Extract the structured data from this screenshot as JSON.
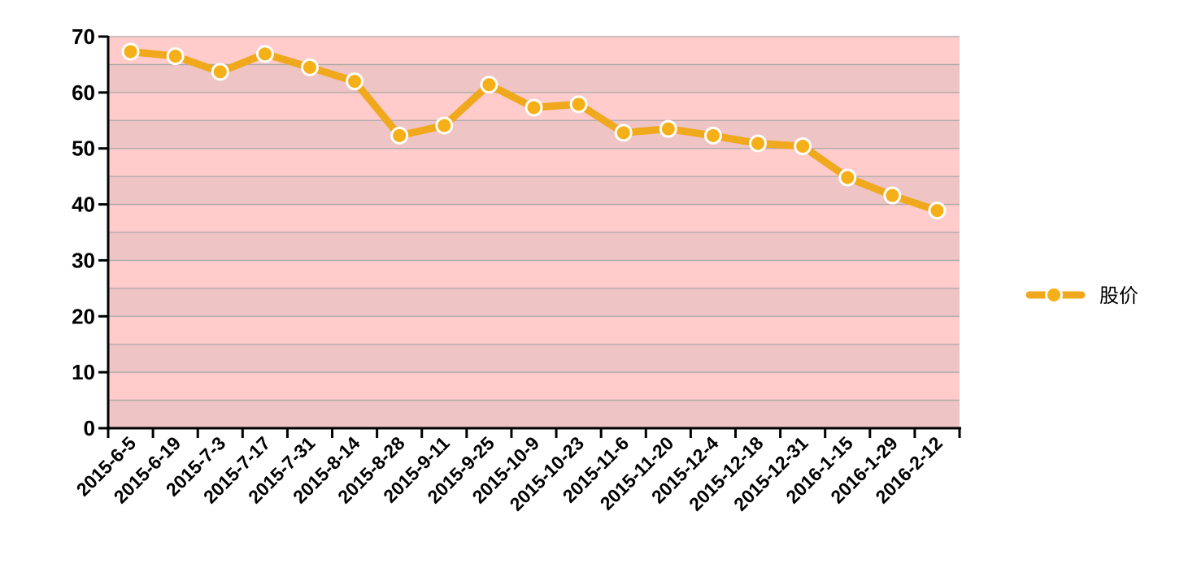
{
  "chart_data": {
    "type": "line",
    "categories": [
      "2015-6-5",
      "2015-6-19",
      "2015-7-3",
      "2015-7-17",
      "2015-7-31",
      "2015-8-14",
      "2015-8-28",
      "2015-9-11",
      "2015-9-25",
      "2015-10-9",
      "2015-10-23",
      "2015-11-6",
      "2015-11-20",
      "2015-12-4",
      "2015-12-18",
      "2015-12-31",
      "2016-1-15",
      "2016-1-29",
      "2016-2-12"
    ],
    "series": [
      {
        "name": "股价",
        "values": [
          67.3,
          66.5,
          63.7,
          66.9,
          64.5,
          62.0,
          52.3,
          54.1,
          61.4,
          57.3,
          57.9,
          52.8,
          53.5,
          52.3,
          50.9,
          50.4,
          44.8,
          41.6,
          38.9
        ]
      }
    ],
    "ylim": [
      0,
      70
    ],
    "yticks": [
      0,
      10,
      20,
      30,
      40,
      50,
      60,
      70
    ],
    "title": "",
    "xlabel": "",
    "ylabel": "",
    "grid": true,
    "legend_position": "right",
    "colors": {
      "line": "#F0A81C",
      "marker_fill": "#F5B019",
      "marker_stroke": "#ffffff",
      "band_light": "#FFCBCB",
      "band_dark": "#EEC4C4",
      "gridline": "#A9A9A9"
    }
  }
}
